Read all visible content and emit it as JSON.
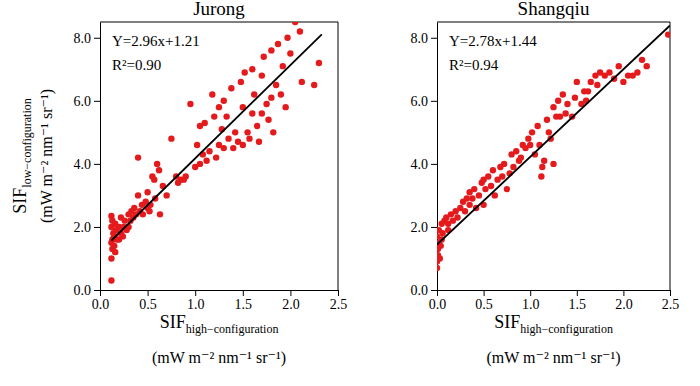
{
  "chart_data": [
    {
      "type": "scatter",
      "title": "Jurong",
      "x_label": {
        "text": "SIF",
        "subscript": "high−configuration",
        "unit": "(mW m⁻² nm⁻¹ sr⁻¹)"
      },
      "y_label": {
        "text": "SIF",
        "subscript": "low−configuration",
        "unit": "(mW m⁻² nm⁻¹ sr⁻¹)"
      },
      "annotations": [
        "Y=2.96x+1.21",
        "R²=0.90"
      ],
      "xlim": [
        0,
        2.5
      ],
      "xticks": [
        {
          "value": 0,
          "label": "0.0"
        },
        {
          "value": 0.5,
          "label": "0.5"
        },
        {
          "value": 1,
          "label": "1.0"
        },
        {
          "value": 1.5,
          "label": "1.5"
        },
        {
          "value": 2,
          "label": "2.0"
        },
        {
          "value": 2.5,
          "label": "2.5"
        }
      ],
      "ylim": [
        0,
        8.5
      ],
      "yticks": [
        {
          "value": 0,
          "label": "0.0"
        },
        {
          "value": 2,
          "label": "2.0"
        },
        {
          "value": 4,
          "label": "4.0"
        },
        {
          "value": 6,
          "label": "6.0"
        },
        {
          "value": 8,
          "label": "8.0"
        }
      ],
      "color": "#e41a1c",
      "marker": "circle",
      "x": [
        0.12,
        0.12,
        0.13,
        0.12,
        0.13,
        0.14,
        0.12,
        0.13,
        0.12,
        0.15,
        0.16,
        0.15,
        0.17,
        0.18,
        0.16,
        0.2,
        0.2,
        0.22,
        0.22,
        0.24,
        0.25,
        0.26,
        0.28,
        0.3,
        0.3,
        0.32,
        0.33,
        0.35,
        0.36,
        0.38,
        0.4,
        0.4,
        0.42,
        0.44,
        0.45,
        0.48,
        0.5,
        0.5,
        0.52,
        0.53,
        0.55,
        0.57,
        0.58,
        0.6,
        0.62,
        0.63,
        0.66,
        0.7,
        0.75,
        0.8,
        0.82,
        0.85,
        0.88,
        0.9,
        0.95,
        1.0,
        1.02,
        1.05,
        1.05,
        1.08,
        1.1,
        1.12,
        1.15,
        1.18,
        1.2,
        1.22,
        1.25,
        1.25,
        1.28,
        1.3,
        1.3,
        1.33,
        1.35,
        1.38,
        1.4,
        1.42,
        1.45,
        1.48,
        1.5,
        1.5,
        1.52,
        1.55,
        1.57,
        1.6,
        1.6,
        1.62,
        1.65,
        1.67,
        1.7,
        1.7,
        1.72,
        1.75,
        1.77,
        1.8,
        1.8,
        1.82,
        1.85,
        1.87,
        1.9,
        1.92,
        1.95,
        1.97,
        2.0,
        2.05,
        2.1,
        2.12,
        2.25,
        2.3
      ],
      "values": [
        0.3,
        1.0,
        1.3,
        1.5,
        1.6,
        1.8,
        2.0,
        2.2,
        2.35,
        1.4,
        1.2,
        1.7,
        1.9,
        1.6,
        2.1,
        2.0,
        1.6,
        1.8,
        2.3,
        1.7,
        2.0,
        2.2,
        1.9,
        2.0,
        2.4,
        2.2,
        2.5,
        2.3,
        2.6,
        2.4,
        3.0,
        4.2,
        2.5,
        2.7,
        2.4,
        2.8,
        2.6,
        3.1,
        2.5,
        2.7,
        3.6,
        3.5,
        2.9,
        4.0,
        3.8,
        2.4,
        3.3,
        3.0,
        4.8,
        3.6,
        3.4,
        3.5,
        3.5,
        3.6,
        5.9,
        3.9,
        4.6,
        4.0,
        5.2,
        4.3,
        5.3,
        4.1,
        4.4,
        6.2,
        5.5,
        4.2,
        5.8,
        4.6,
        5.1,
        6.0,
        4.5,
        5.5,
        4.8,
        6.4,
        4.5,
        5.0,
        4.7,
        6.6,
        5.8,
        4.6,
        6.9,
        5.0,
        4.8,
        5.6,
        7.0,
        6.2,
        5.2,
        4.7,
        6.8,
        5.6,
        7.4,
        5.9,
        5.4,
        6.1,
        7.6,
        5.0,
        6.5,
        7.8,
        6.2,
        7.1,
        5.8,
        8.0,
        7.5,
        8.5,
        8.2,
        6.6,
        6.5,
        7.2
      ],
      "fit": {
        "x": [
          0.12,
          2.33
        ],
        "values": [
          1.57,
          8.11
        ],
        "color": "#000000"
      }
    },
    {
      "type": "scatter",
      "title": "Shangqiu",
      "x_label": {
        "text": "SIF",
        "subscript": "high−configuration",
        "unit": "(mW m⁻² nm⁻¹ sr⁻¹)"
      },
      "annotations": [
        "Y=2.78x+1.44",
        "R²=0.94"
      ],
      "xlim": [
        0,
        2.5
      ],
      "xticks": [
        {
          "value": 0,
          "label": "0.0"
        },
        {
          "value": 0.5,
          "label": "0.5"
        },
        {
          "value": 1,
          "label": "1.0"
        },
        {
          "value": 1.5,
          "label": "1.5"
        },
        {
          "value": 2,
          "label": "2.0"
        },
        {
          "value": 2.5,
          "label": "2.5"
        }
      ],
      "ylim": [
        0,
        8.5
      ],
      "yticks": [
        {
          "value": 0,
          "label": "0.0"
        },
        {
          "value": 2,
          "label": "2.0"
        },
        {
          "value": 4,
          "label": "4.0"
        },
        {
          "value": 6,
          "label": "6.0"
        },
        {
          "value": 8,
          "label": "8.0"
        }
      ],
      "color": "#e41a1c",
      "marker": "circle",
      "x": [
        0.0,
        0.0,
        0.01,
        0.01,
        0.02,
        0.0,
        0.02,
        0.03,
        0.04,
        0.05,
        0.06,
        0.05,
        0.08,
        0.1,
        0.12,
        0.12,
        0.15,
        0.17,
        0.2,
        0.22,
        0.25,
        0.28,
        0.3,
        0.32,
        0.35,
        0.35,
        0.38,
        0.4,
        0.42,
        0.45,
        0.48,
        0.5,
        0.5,
        0.52,
        0.55,
        0.58,
        0.6,
        0.62,
        0.65,
        0.68,
        0.7,
        0.72,
        0.75,
        0.78,
        0.8,
        0.82,
        0.85,
        0.88,
        0.9,
        0.92,
        0.95,
        0.98,
        1.0,
        1.02,
        1.05,
        1.08,
        1.1,
        1.12,
        1.13,
        1.15,
        1.18,
        1.2,
        1.22,
        1.25,
        1.25,
        1.28,
        1.3,
        1.32,
        1.35,
        1.38,
        1.4,
        1.45,
        1.48,
        1.5,
        1.55,
        1.58,
        1.6,
        1.62,
        1.65,
        1.7,
        1.72,
        1.75,
        1.8,
        1.85,
        1.9,
        1.95,
        2.0,
        2.05,
        2.1,
        2.15,
        2.2,
        2.25,
        2.48
      ],
      "values": [
        0.7,
        0.9,
        1.1,
        1.3,
        1.5,
        1.7,
        1.9,
        1.0,
        1.4,
        1.6,
        1.8,
        2.1,
        2.2,
        2.3,
        1.9,
        2.1,
        2.4,
        2.2,
        2.5,
        2.3,
        2.6,
        2.8,
        2.5,
        2.9,
        2.7,
        3.1,
        2.9,
        3.2,
        2.6,
        3.0,
        3.4,
        2.7,
        3.5,
        3.2,
        3.6,
        3.3,
        3.8,
        3.0,
        3.5,
        3.9,
        3.6,
        4.0,
        3.2,
        3.7,
        4.3,
        3.9,
        4.4,
        4.1,
        4.2,
        4.6,
        4.5,
        4.8,
        4.6,
        5.0,
        4.3,
        5.2,
        4.6,
        3.6,
        3.9,
        4.1,
        5.4,
        5.0,
        4.8,
        4.0,
        5.8,
        5.5,
        6.0,
        5.5,
        6.2,
        5.6,
        5.9,
        5.5,
        6.1,
        6.6,
        5.9,
        6.3,
        6.0,
        6.3,
        6.6,
        6.8,
        6.5,
        6.9,
        6.8,
        6.9,
        6.7,
        7.1,
        6.6,
        6.8,
        6.8,
        6.9,
        7.3,
        7.1,
        8.1
      ],
      "fit": {
        "x": [
          0.0,
          2.5
        ],
        "values": [
          1.44,
          8.39
        ],
        "color": "#000000"
      }
    }
  ]
}
